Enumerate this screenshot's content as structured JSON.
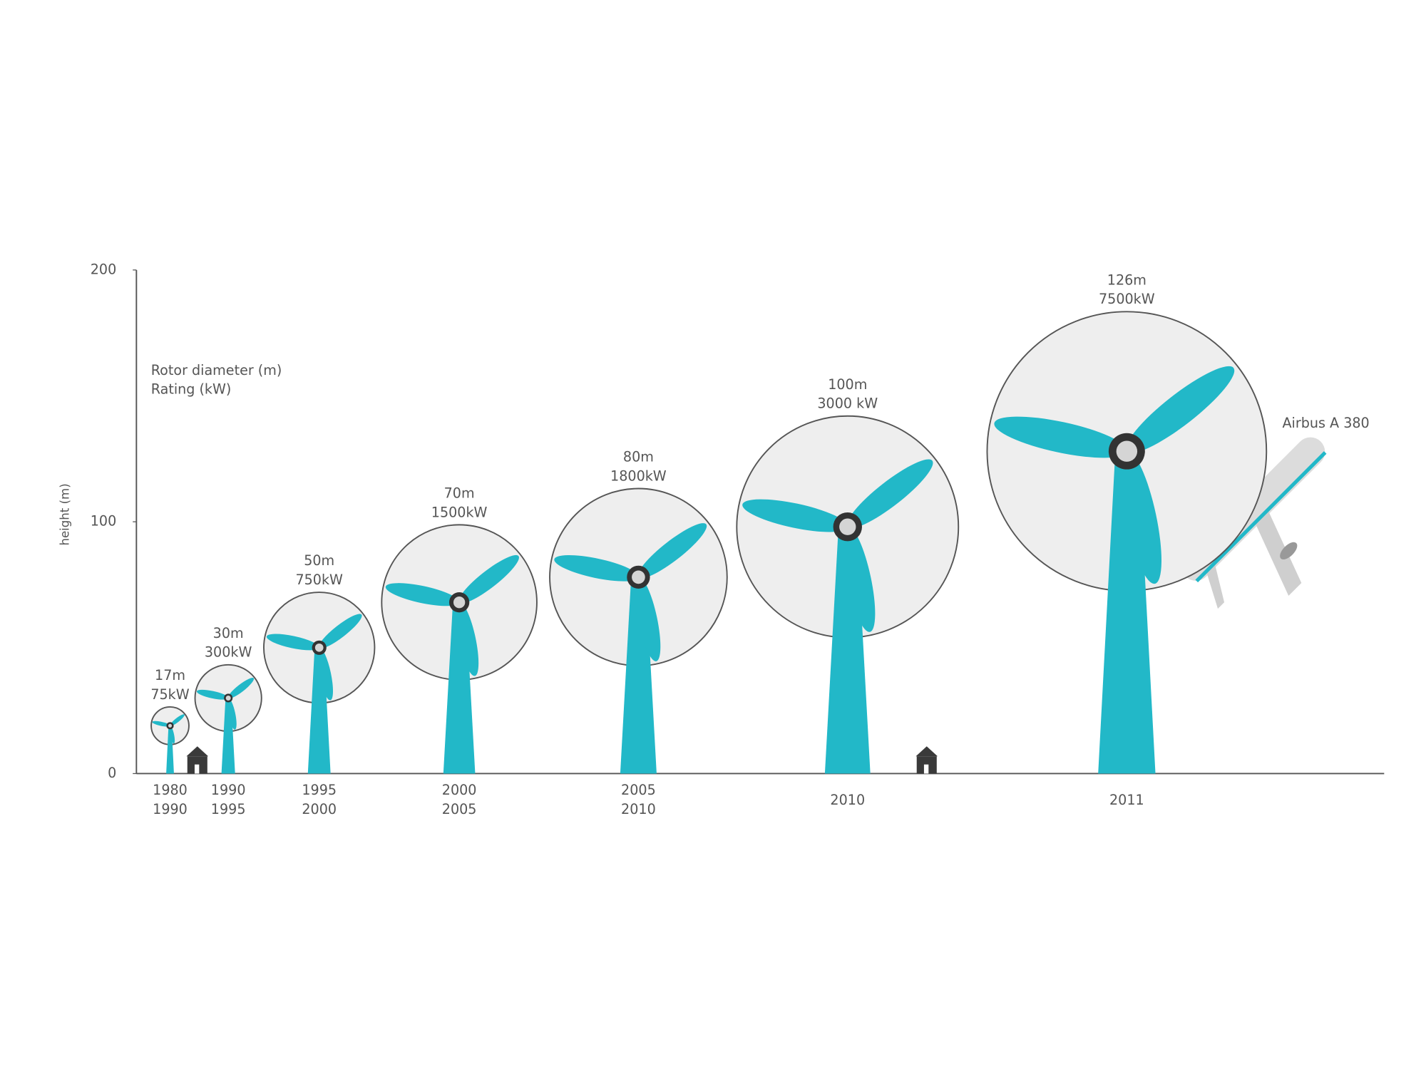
{
  "chart_data": {
    "type": "turbine",
    "ylabel": "height (m)",
    "legend": [
      "Rotor diameter (m)",
      "Rating (kW)"
    ],
    "annotation": "Airbus A 380",
    "ylim": [
      0,
      200
    ],
    "yticks": [
      0,
      100,
      200
    ],
    "categories": [
      [
        "1980",
        "1990"
      ],
      [
        "1990",
        "1995"
      ],
      [
        "1995",
        "2000"
      ],
      [
        "2000",
        "2005"
      ],
      [
        "2005",
        "2010"
      ],
      [
        "2010"
      ],
      [
        "2011"
      ]
    ],
    "color": "#22b8c8",
    "hub_height": [
      19,
      30,
      50,
      68,
      78,
      98,
      128
    ],
    "rotor_diameter": [
      17,
      30,
      50,
      70,
      80,
      100,
      126
    ],
    "rotor_diameter_labels": [
      "17m",
      "30m",
      "50m",
      "70m",
      "80m",
      "100m",
      "126m"
    ],
    "rating": [
      75,
      300,
      750,
      1500,
      1800,
      3000,
      7500
    ],
    "rating_labels": [
      "75kW",
      "300kW",
      "750kW",
      "1500kW",
      "1800kW",
      "3000 kW",
      "7500kW"
    ]
  }
}
